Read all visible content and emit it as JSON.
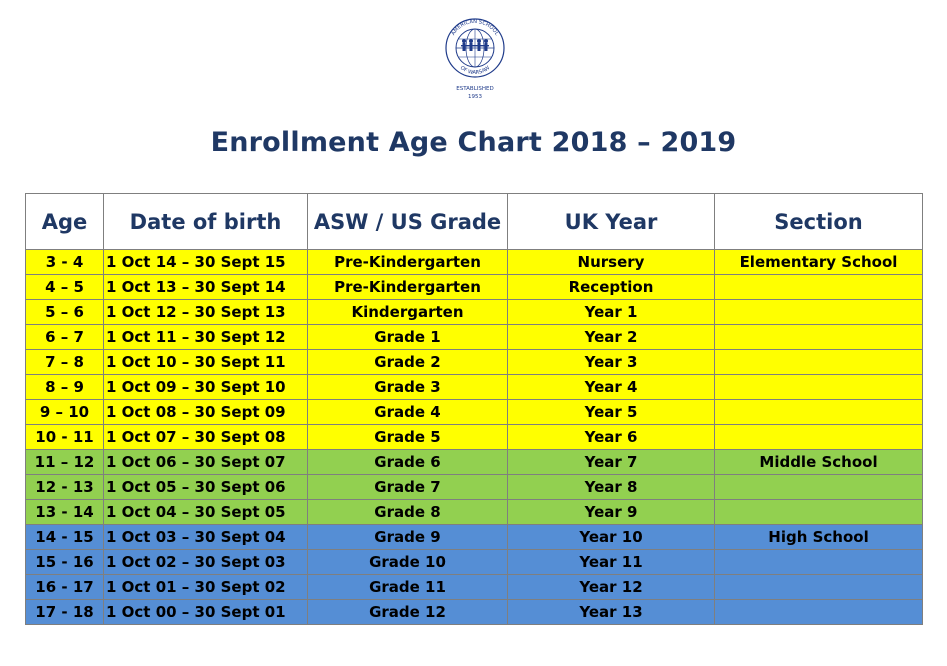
{
  "logo": {
    "arc_text": "AMERICAN SCHOOL",
    "lower_text": "OF WARSAW",
    "established": "ESTABLISHED",
    "year": "1953",
    "color": "#1f3b8a"
  },
  "title": "Enrollment Age Chart 2018 – 2019",
  "table": {
    "headers": [
      "Age",
      "Date of birth",
      "ASW / US Grade",
      "UK Year",
      "Section"
    ],
    "rows": [
      {
        "age": "3 - 4",
        "dob": "1 Oct 14 – 30 Sept 15",
        "grade": "Pre-Kindergarten",
        "uk": "Nursery",
        "section": "Elementary School"
      },
      {
        "age": "4 – 5",
        "dob": "1 Oct 13 – 30 Sept 14",
        "grade": "Pre-Kindergarten",
        "uk": "Reception",
        "section": ""
      },
      {
        "age": "5 – 6",
        "dob": "1 Oct 12 – 30 Sept 13",
        "grade": "Kindergarten",
        "uk": "Year 1",
        "section": ""
      },
      {
        "age": "6 – 7",
        "dob": "1 Oct 11 – 30 Sept 12",
        "grade": "Grade 1",
        "uk": "Year 2",
        "section": ""
      },
      {
        "age": "7 – 8",
        "dob": "1 Oct 10 – 30 Sept 11",
        "grade": "Grade 2",
        "uk": "Year 3",
        "section": ""
      },
      {
        "age": "8 – 9",
        "dob": "1 Oct 09 – 30 Sept 10",
        "grade": "Grade 3",
        "uk": "Year 4",
        "section": ""
      },
      {
        "age": "9 – 10",
        "dob": "1 Oct 08 – 30 Sept 09",
        "grade": "Grade 4",
        "uk": "Year 5",
        "section": ""
      },
      {
        "age": "10 - 11",
        "dob": "1 Oct 07 – 30 Sept 08",
        "grade": "Grade 5",
        "uk": "Year 6",
        "section": ""
      },
      {
        "age": "11 – 12",
        "dob": "1 Oct 06 – 30 Sept 07",
        "grade": "Grade 6",
        "uk": "Year 7",
        "section": "Middle School"
      },
      {
        "age": "12 - 13",
        "dob": "1 Oct 05 – 30 Sept 06",
        "grade": "Grade 7",
        "uk": "Year 8",
        "section": ""
      },
      {
        "age": "13 - 14",
        "dob": "1 Oct 04 – 30 Sept 05",
        "grade": "Grade 8",
        "uk": "Year 9",
        "section": ""
      },
      {
        "age": "14 - 15",
        "dob": "1 Oct 03 – 30 Sept 04",
        "grade": "Grade 9",
        "uk": "Year 10",
        "section": "High School"
      },
      {
        "age": "15 - 16",
        "dob": "1 Oct 02 – 30 Sept 03",
        "grade": "Grade 10",
        "uk": "Year 11",
        "section": ""
      },
      {
        "age": "16 - 17",
        "dob": "1 Oct 01 – 30 Sept 02",
        "grade": "Grade 11",
        "uk": "Year 12",
        "section": ""
      },
      {
        "age": "17 - 18",
        "dob": "1 Oct 00 – 30 Sept 01",
        "grade": "Grade 12",
        "uk": "Year 13",
        "section": ""
      }
    ]
  },
  "colors": {
    "elementary": "#ffff00",
    "middle": "#92d050",
    "high": "#558ed5",
    "heading": "#1f3864"
  }
}
